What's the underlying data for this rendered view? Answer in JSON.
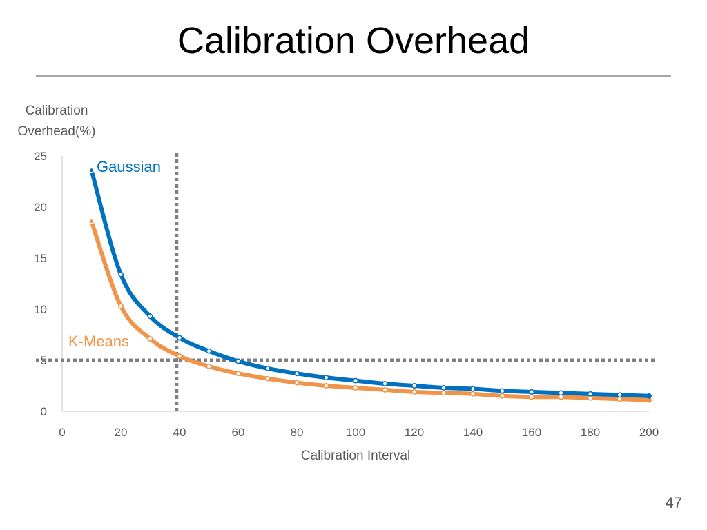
{
  "slide": {
    "title": "Calibration Overhead",
    "page_number": "47"
  },
  "chart_data": {
    "type": "line",
    "title": "",
    "ylabel_lines": [
      "Calibration",
      "Overhead(%)"
    ],
    "xlabel": "Calibration Interval",
    "xlim": [
      0,
      200
    ],
    "ylim": [
      0,
      25
    ],
    "x_ticks": [
      0,
      20,
      40,
      60,
      80,
      100,
      120,
      140,
      160,
      180,
      200
    ],
    "y_ticks": [
      0,
      5,
      10,
      15,
      20,
      25
    ],
    "grid": false,
    "x": [
      10,
      20,
      30,
      40,
      50,
      60,
      70,
      80,
      90,
      100,
      110,
      120,
      130,
      140,
      150,
      160,
      170,
      180,
      190,
      200
    ],
    "series": [
      {
        "name": "Gaussian",
        "color": "#0070c0",
        "values": [
          23.6,
          13.4,
          9.3,
          7.2,
          5.9,
          4.9,
          4.2,
          3.7,
          3.3,
          3.0,
          2.7,
          2.5,
          2.3,
          2.2,
          2.0,
          1.9,
          1.8,
          1.7,
          1.6,
          1.5
        ]
      },
      {
        "name": "K-Means",
        "color": "#f0944a",
        "values": [
          18.6,
          10.3,
          7.1,
          5.4,
          4.4,
          3.7,
          3.2,
          2.8,
          2.5,
          2.3,
          2.1,
          1.9,
          1.8,
          1.7,
          1.5,
          1.4,
          1.4,
          1.3,
          1.2,
          1.1
        ]
      }
    ],
    "reference_lines": [
      {
        "axis": "x",
        "value": 39,
        "color": "#7f7f7f",
        "style": "dotted"
      },
      {
        "axis": "y",
        "value": 5,
        "color": "#7f7f7f",
        "style": "dotted"
      }
    ]
  }
}
